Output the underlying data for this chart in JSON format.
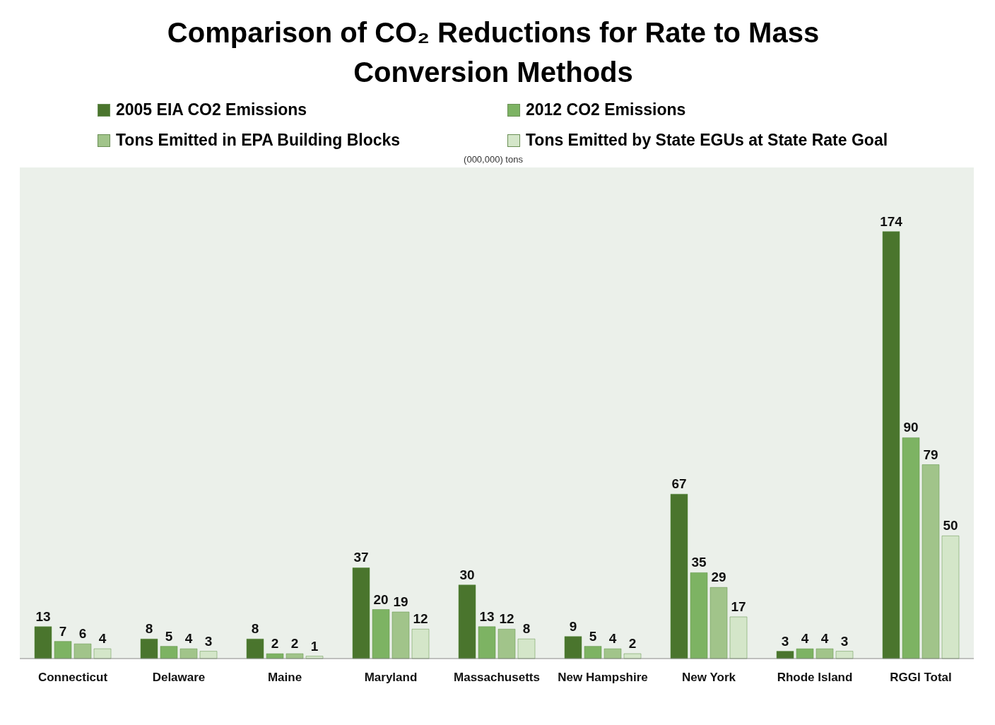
{
  "chart_data": {
    "type": "bar",
    "title": "Comparison of CO₂ Reductions for Rate to Mass Conversion Methods",
    "annotations": [
      "(000,000) tons"
    ],
    "categories": [
      "Connecticut",
      "Delaware",
      "Maine",
      "Maryland",
      "Massachusetts",
      "New Hampshire",
      "New York",
      "Rhode Island",
      "RGGI Total"
    ],
    "series": [
      {
        "name": "2005 EIA CO2 Emissions",
        "color": "#4a752d",
        "values": [
          13,
          8,
          8,
          37,
          30,
          9,
          67,
          3,
          174
        ]
      },
      {
        "name": "2012 CO2 Emissions",
        "color": "#7db363",
        "values": [
          7,
          5,
          2,
          20,
          13,
          5,
          35,
          4,
          90
        ]
      },
      {
        "name": "Tons Emitted in EPA Building Blocks",
        "color": "#a1c48a",
        "values": [
          6,
          4,
          2,
          19,
          12,
          4,
          29,
          4,
          79
        ]
      },
      {
        "name": "Tons Emitted by State EGUs at State Rate Goal",
        "color": "#d4e6c9",
        "values": [
          4,
          3,
          1,
          12,
          8,
          2,
          17,
          3,
          50
        ]
      }
    ],
    "data_labels": true,
    "legend": "top",
    "grid": false
  }
}
